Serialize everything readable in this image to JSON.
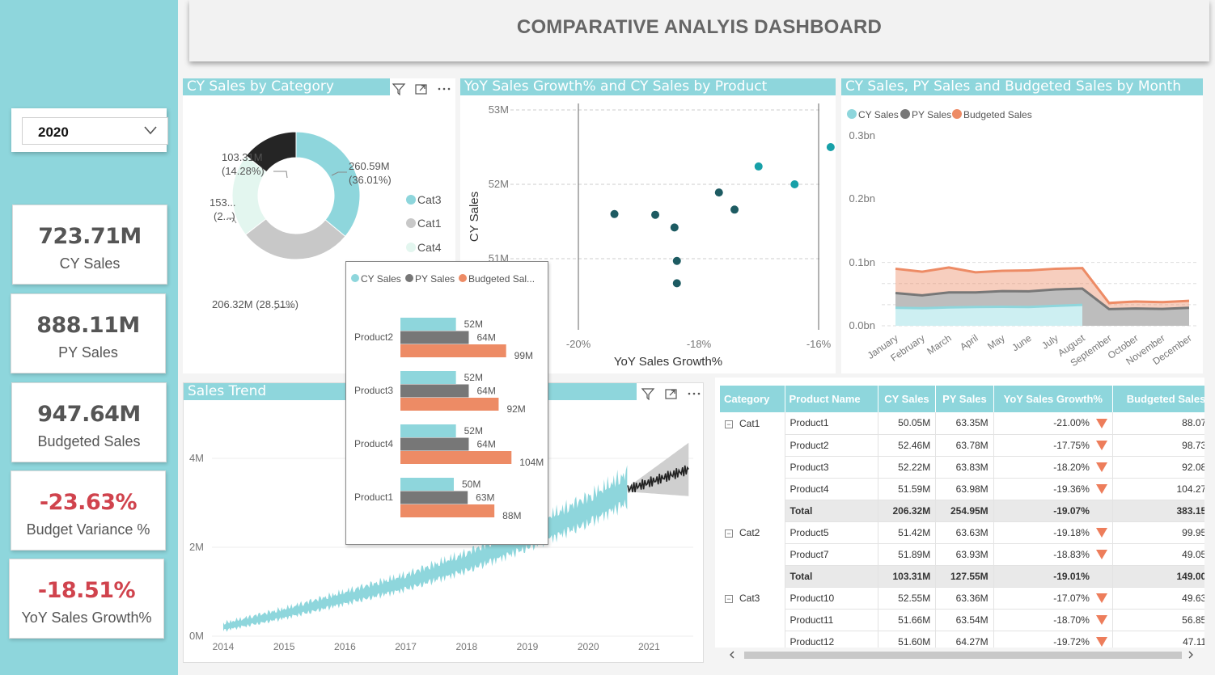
{
  "dashboard_title": "COMPARATIVE ANALYIS DASHBOARD",
  "year_slicer": {
    "selected": "2020"
  },
  "kpis": [
    {
      "value": "723.71M",
      "label": "CY Sales"
    },
    {
      "value": "888.11M",
      "label": "PY Sales"
    },
    {
      "value": "947.64M",
      "label": "Budgeted Sales"
    },
    {
      "value": "-23.63%",
      "label": "Budget Variance %"
    },
    {
      "value": "-18.51%",
      "label": "YoY Sales Growth%"
    }
  ],
  "colors": {
    "cy": "#8ed6dc",
    "py": "#777777",
    "budget": "#ed8b65",
    "cat4": "#e3f6ef",
    "cat1": "#c8c8c8",
    "cat_dark": "#252525",
    "negative": "#d0434d"
  },
  "donut": {
    "title": "CY Sales by Category",
    "legend": [
      "Cat3",
      "Cat1",
      "Cat4"
    ],
    "labels": {
      "cat3": [
        "260.59M",
        "(36.01%)"
      ],
      "dark": [
        "103.31M",
        "(14.28%)"
      ],
      "cat4": [
        "153...",
        "(2...)"
      ],
      "cat1": [
        "206.32M (28.51%)"
      ]
    }
  },
  "scatter": {
    "title": "YoY Sales Growth% and CY Sales by Product",
    "xlabel": "YoY Sales Growth%",
    "ylabel": "CY Sales",
    "xticks": [
      "-20%",
      "-18%",
      "-16%"
    ],
    "yticks": [
      "53M",
      "52M",
      "51M"
    ]
  },
  "area": {
    "title": "CY Sales, PY Sales and Budgeted Sales by Month",
    "legend": [
      "CY Sales",
      "PY Sales",
      "Budgeted Sales"
    ],
    "yticks": [
      "0.3bn",
      "0.2bn",
      "0.1bn",
      "0.0bn"
    ],
    "months": [
      "January",
      "February",
      "March",
      "April",
      "May",
      "June",
      "July",
      "August",
      "September",
      "October",
      "November",
      "December"
    ]
  },
  "trend": {
    "title": "Sales Trend",
    "yticks": [
      "4M",
      "2M",
      "0M"
    ],
    "xticks": [
      "2014",
      "2015",
      "2016",
      "2017",
      "2018",
      "2019",
      "2020",
      "2021"
    ]
  },
  "tooltip": {
    "legend": [
      "CY Sales",
      "PY Sales",
      "Budgeted Sal..."
    ],
    "products": [
      {
        "name": "Product2",
        "cy": "52M",
        "py": "64M",
        "budget": "99M"
      },
      {
        "name": "Product3",
        "cy": "52M",
        "py": "64M",
        "budget": "92M"
      },
      {
        "name": "Product4",
        "cy": "52M",
        "py": "64M",
        "budget": "104M"
      },
      {
        "name": "Product1",
        "cy": "50M",
        "py": "63M",
        "budget": "88M"
      }
    ]
  },
  "matrix": {
    "headers": [
      "Category",
      "Product Name",
      "CY Sales",
      "PY Sales",
      "YoY Sales Growth%",
      "Budgeted Sales",
      "B"
    ],
    "groups": [
      {
        "category": "Cat1",
        "rows": [
          [
            "Product1",
            "50.05M",
            "63.35M",
            "-21.00%",
            "88.07M"
          ],
          [
            "Product2",
            "52.46M",
            "63.78M",
            "-17.75%",
            "98.73M"
          ],
          [
            "Product3",
            "52.22M",
            "63.83M",
            "-18.20%",
            "92.08M"
          ],
          [
            "Product4",
            "51.59M",
            "63.98M",
            "-19.36%",
            "104.27M"
          ]
        ],
        "total": [
          "Total",
          "206.32M",
          "254.95M",
          "-19.07%",
          "383.15M"
        ]
      },
      {
        "category": "Cat2",
        "rows": [
          [
            "Product5",
            "51.42M",
            "63.63M",
            "-19.18%",
            "99.95M"
          ],
          [
            "Product7",
            "51.89M",
            "63.93M",
            "-18.83%",
            "49.05M"
          ]
        ],
        "total": [
          "Total",
          "103.31M",
          "127.55M",
          "-19.01%",
          "149.00M"
        ]
      },
      {
        "category": "Cat3",
        "rows": [
          [
            "Product10",
            "52.55M",
            "63.36M",
            "-17.07%",
            "49.63M"
          ],
          [
            "Product11",
            "51.66M",
            "63.54M",
            "-18.70%",
            "56.85M"
          ],
          [
            "Product12",
            "51.60M",
            "64.27M",
            "-19.72%",
            "47.11M"
          ]
        ]
      }
    ]
  },
  "chart_data": [
    {
      "type": "pie",
      "title": "CY Sales by Category",
      "categories": [
        "Cat3",
        "Cat1",
        "Cat4",
        "Cat2"
      ],
      "values": [
        260.59,
        206.32,
        153.49,
        103.31
      ],
      "unit": "M"
    },
    {
      "type": "scatter",
      "title": "YoY Sales Growth% and CY Sales by Product",
      "xlabel": "YoY Sales Growth%",
      "ylabel": "CY Sales",
      "xlim": [
        -21.0,
        -15.8
      ],
      "ylim": [
        50.5,
        53.2
      ],
      "points": [
        {
          "x": -19.7,
          "y": 51.6
        },
        {
          "x": -19.36,
          "y": 51.59
        },
        {
          "x": -19.2,
          "y": 51.42
        },
        {
          "x": -19.18,
          "y": 50.97
        },
        {
          "x": -19.18,
          "y": 50.67
        },
        {
          "x": -18.83,
          "y": 51.89
        },
        {
          "x": -18.7,
          "y": 51.66
        },
        {
          "x": -18.5,
          "y": 52.24
        },
        {
          "x": -18.2,
          "y": 52.0
        },
        {
          "x": -17.9,
          "y": 52.5
        },
        {
          "x": -17.07,
          "y": 52.55
        },
        {
          "x": -16.9,
          "y": 52.78
        },
        {
          "x": -15.85,
          "y": 51.93
        }
      ],
      "colors": [
        "#1d5b62",
        "#1d5b62",
        "#1d5b62",
        "#1d5b62",
        "#1d5b62",
        "#1d5b62",
        "#1d5b62",
        "#17a0a8",
        "#17a0a8",
        "#17a0a8",
        "#17a0a8",
        "#26bcc6",
        "#30c9d3"
      ]
    },
    {
      "type": "area",
      "title": "CY Sales, PY Sales and Budgeted Sales by Month",
      "categories": [
        "January",
        "February",
        "March",
        "April",
        "May",
        "June",
        "July",
        "August",
        "September",
        "October",
        "November",
        "December"
      ],
      "ylim": [
        0,
        0.3
      ],
      "series": [
        {
          "name": "CY Sales",
          "values": [
            0.085,
            0.083,
            0.087,
            0.089,
            0.09,
            0.089,
            0.094,
            0.099,
            null,
            null,
            null,
            null
          ]
        },
        {
          "name": "PY Sales",
          "values": [
            0.155,
            0.144,
            0.158,
            0.158,
            0.164,
            0.163,
            0.172,
            0.176,
            0.079,
            0.082,
            0.08,
            0.085
          ]
        },
        {
          "name": "Budgeted Sales",
          "values": [
            0.27,
            0.256,
            0.276,
            0.253,
            0.26,
            0.262,
            0.27,
            0.273,
            0.108,
            0.115,
            0.112,
            0.118
          ]
        }
      ]
    },
    {
      "type": "line",
      "title": "Sales Trend",
      "ylim": [
        0,
        4.5
      ],
      "xlim": [
        2014,
        2021.65
      ],
      "series": [
        {
          "name": "actual",
          "x": [
            2014,
            2015,
            2016,
            2017,
            2018,
            2019,
            2020,
            2020.65
          ],
          "values": [
            0.2,
            0.5,
            0.85,
            1.2,
            1.65,
            2.2,
            2.8,
            3.3
          ]
        },
        {
          "name": "forecast",
          "x": [
            2020.65,
            2021,
            2021.65
          ],
          "values": [
            3.3,
            3.5,
            3.75
          ]
        }
      ]
    },
    {
      "type": "bar",
      "title": "Tooltip",
      "categories": [
        "Product2",
        "Product3",
        "Product4",
        "Product1"
      ],
      "series": [
        {
          "name": "CY Sales",
          "values": [
            52,
            52,
            52,
            50
          ]
        },
        {
          "name": "PY Sales",
          "values": [
            64,
            64,
            64,
            63
          ]
        },
        {
          "name": "Budgeted Sales",
          "values": [
            99,
            92,
            104,
            88
          ]
        }
      ]
    }
  ]
}
